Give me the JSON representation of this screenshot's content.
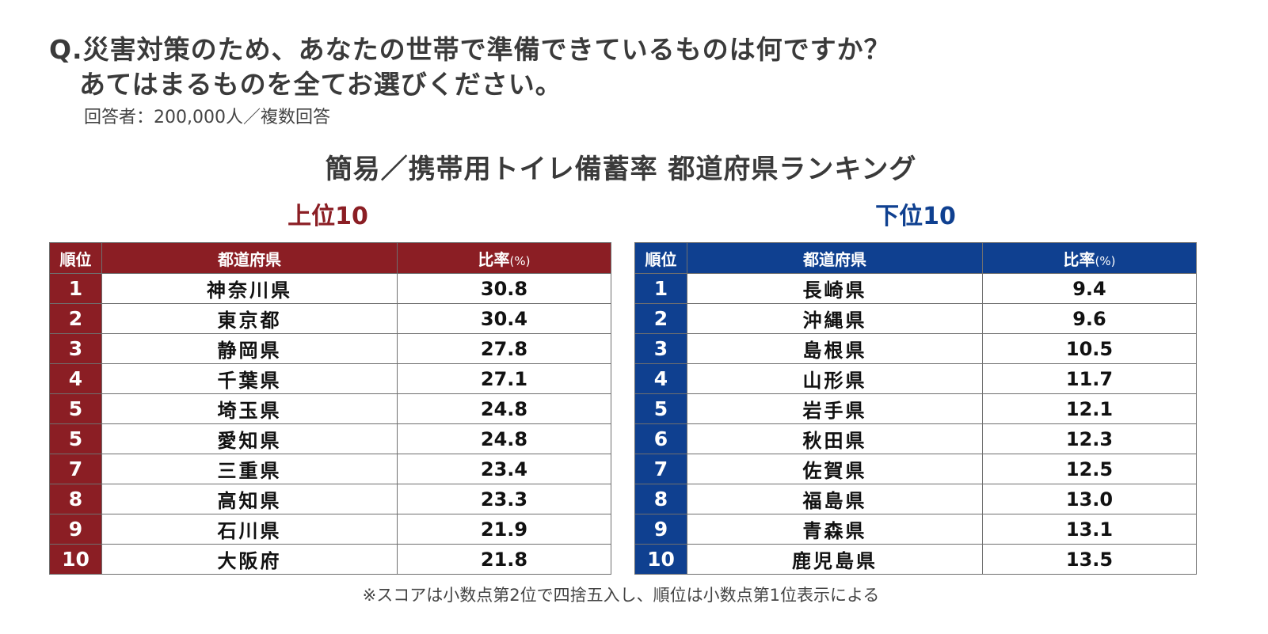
{
  "question": {
    "line1": "Q.災害対策のため、あなたの世帯で準備できているものは何ですか？",
    "line2": "あてはまるものを全てお選びください。",
    "respondents": "回答者：200,000人／複数回答"
  },
  "main_title": "簡易／携帯用トイレ備蓄率 都道府県ランキング",
  "colors": {
    "top_accent": "#8b1e24",
    "bottom_accent": "#0f4090"
  },
  "chart_data": [
    {
      "type": "table",
      "title": "上位10",
      "columns": [
        "順位",
        "都道府県",
        "比率",
        "(%)"
      ],
      "rows": [
        {
          "rank": "1",
          "prefecture": "神奈川県",
          "rate": 30.8
        },
        {
          "rank": "2",
          "prefecture": "東京都",
          "rate": 30.4
        },
        {
          "rank": "3",
          "prefecture": "静岡県",
          "rate": 27.8
        },
        {
          "rank": "4",
          "prefecture": "千葉県",
          "rate": 27.1
        },
        {
          "rank": "5",
          "prefecture": "埼玉県",
          "rate": 24.8
        },
        {
          "rank": "5",
          "prefecture": "愛知県",
          "rate": 24.8
        },
        {
          "rank": "7",
          "prefecture": "三重県",
          "rate": 23.4
        },
        {
          "rank": "8",
          "prefecture": "高知県",
          "rate": 23.3
        },
        {
          "rank": "9",
          "prefecture": "石川県",
          "rate": 21.9
        },
        {
          "rank": "10",
          "prefecture": "大阪府",
          "rate": 21.8
        }
      ]
    },
    {
      "type": "table",
      "title": "下位10",
      "columns": [
        "順位",
        "都道府県",
        "比率",
        "(%)"
      ],
      "rows": [
        {
          "rank": "1",
          "prefecture": "長崎県",
          "rate": 9.4
        },
        {
          "rank": "2",
          "prefecture": "沖縄県",
          "rate": 9.6
        },
        {
          "rank": "3",
          "prefecture": "島根県",
          "rate": 10.5
        },
        {
          "rank": "4",
          "prefecture": "山形県",
          "rate": 11.7
        },
        {
          "rank": "5",
          "prefecture": "岩手県",
          "rate": 12.1
        },
        {
          "rank": "6",
          "prefecture": "秋田県",
          "rate": 12.3
        },
        {
          "rank": "7",
          "prefecture": "佐賀県",
          "rate": 12.5
        },
        {
          "rank": "8",
          "prefecture": "福島県",
          "rate": 13.0
        },
        {
          "rank": "9",
          "prefecture": "青森県",
          "rate": 13.1
        },
        {
          "rank": "10",
          "prefecture": "鹿児島県",
          "rate": 13.5
        }
      ]
    }
  ],
  "footnote": "※スコアは小数点第2位で四捨五入し、順位は小数点第1位表示による"
}
